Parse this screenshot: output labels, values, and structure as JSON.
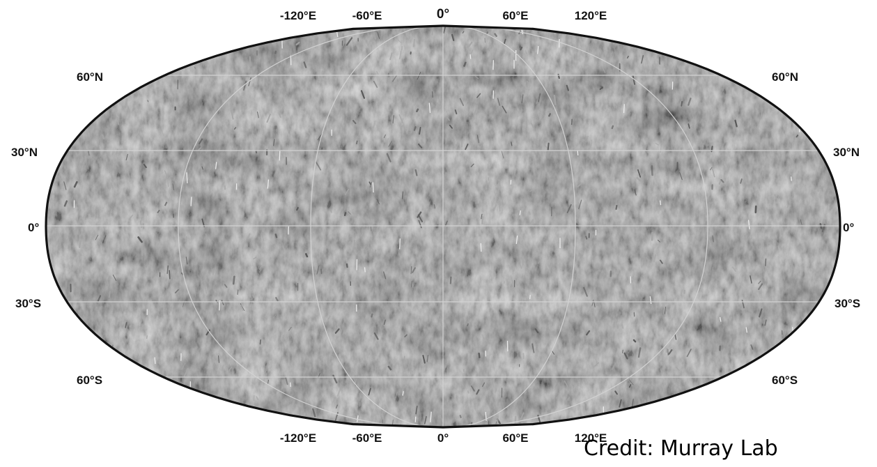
{
  "map": {
    "colors": {
      "surface_base": "#808080",
      "surface_light": "#a6a6a6",
      "surface_dark": "#585858",
      "graticule": "#d2d2d2",
      "outline": "#111111",
      "background": "#ffffff"
    },
    "longitude_labels_top": [
      "-120°E",
      "-60°E",
      "0°",
      "60°E",
      "120°E"
    ],
    "longitude_labels_bottom": [
      "-120°E",
      "-60°E",
      "0°",
      "60°E",
      "120°E"
    ],
    "latitude_labels_left": [
      "60°N",
      "30°N",
      "0°",
      "30°S",
      "60°S"
    ],
    "latitude_labels_right": [
      "60°N",
      "30°N",
      "0°",
      "30°S",
      "60°S"
    ]
  },
  "credit": {
    "text": "Credit: Murray Lab"
  }
}
